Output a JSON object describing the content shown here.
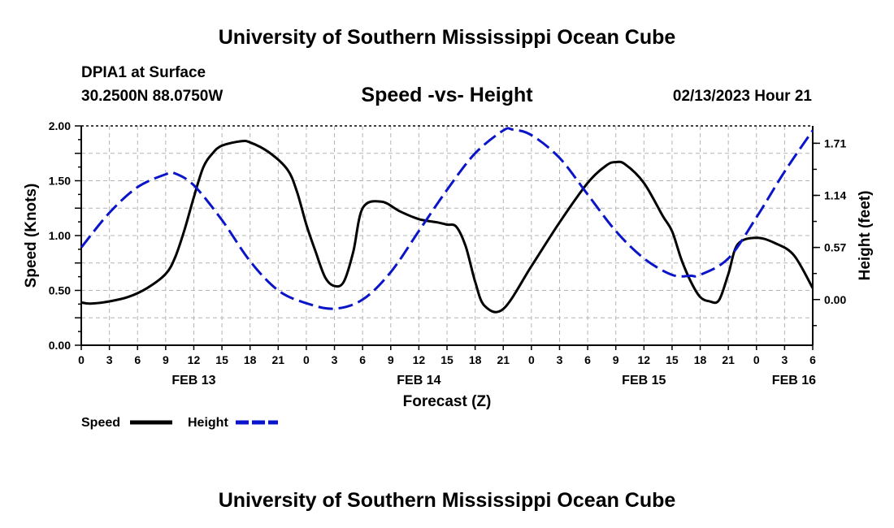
{
  "header": {
    "title": "University of Southern Mississippi Ocean Cube",
    "station": "DPIA1 at Surface",
    "coords": "30.2500N  88.0750W",
    "chart_title": "Speed -vs- Height",
    "datetime": "02/13/2023 Hour 21"
  },
  "footer": {
    "title": "University of Southern Mississippi Ocean Cube"
  },
  "legend": {
    "speed_label": "Speed",
    "height_label": "Height"
  },
  "colors": {
    "speed": "#000000",
    "height": "#0a14c8",
    "grid": "#b4b4b4"
  },
  "chart_data": {
    "type": "line",
    "title": "Speed -vs- Height",
    "xlabel": "Forecast (Z)",
    "ylabel": "Speed (Knots)",
    "y2label": "Height (feet)",
    "x_range_hours": [
      0,
      78
    ],
    "x_ticks": [
      {
        "h": 0,
        "label": "0"
      },
      {
        "h": 3,
        "label": "3"
      },
      {
        "h": 6,
        "label": "6"
      },
      {
        "h": 9,
        "label": "9"
      },
      {
        "h": 12,
        "label": "12"
      },
      {
        "h": 15,
        "label": "15"
      },
      {
        "h": 18,
        "label": "18"
      },
      {
        "h": 21,
        "label": "21"
      },
      {
        "h": 24,
        "label": "0"
      },
      {
        "h": 27,
        "label": "3"
      },
      {
        "h": 30,
        "label": "6"
      },
      {
        "h": 33,
        "label": "9"
      },
      {
        "h": 36,
        "label": "12"
      },
      {
        "h": 39,
        "label": "15"
      },
      {
        "h": 42,
        "label": "18"
      },
      {
        "h": 45,
        "label": "21"
      },
      {
        "h": 48,
        "label": "0"
      },
      {
        "h": 51,
        "label": "3"
      },
      {
        "h": 54,
        "label": "6"
      },
      {
        "h": 57,
        "label": "9"
      },
      {
        "h": 60,
        "label": "12"
      },
      {
        "h": 63,
        "label": "15"
      },
      {
        "h": 66,
        "label": "18"
      },
      {
        "h": 69,
        "label": "21"
      },
      {
        "h": 72,
        "label": "0"
      },
      {
        "h": 75,
        "label": "3"
      },
      {
        "h": 78,
        "label": "6"
      }
    ],
    "date_labels": [
      {
        "h": 12,
        "label": "FEB 13"
      },
      {
        "h": 36,
        "label": "FEB 14"
      },
      {
        "h": 60,
        "label": "FEB 15"
      },
      {
        "h": 76,
        "label": "FEB 16"
      }
    ],
    "y_left": {
      "range": [
        0,
        2.0
      ],
      "ticks": [
        0,
        0.5,
        1.0,
        1.5,
        2.0
      ],
      "tick_labels": [
        "0.00",
        "0.50",
        "1.00",
        "1.50",
        "2.00"
      ]
    },
    "y_right": {
      "range": [
        -0.5,
        1.9
      ],
      "ticks": [
        0.0,
        0.57,
        1.14,
        1.71
      ],
      "tick_labels": [
        "0.00",
        "0.57",
        "1.14",
        "1.71"
      ]
    },
    "series": [
      {
        "name": "Speed",
        "axis": "left",
        "style": "solid",
        "x": [
          0,
          1,
          3,
          5,
          7,
          9,
          10,
          11,
          12,
          13,
          14,
          15,
          17,
          18,
          20,
          22,
          23,
          24,
          25,
          26,
          27,
          28,
          29,
          30,
          32,
          34,
          36,
          38,
          39,
          40,
          41,
          42,
          43,
          45,
          48,
          51,
          54,
          56,
          57,
          58,
          60,
          62,
          63,
          64,
          65,
          66,
          67,
          68,
          69,
          70,
          72,
          74,
          76,
          78
        ],
        "values": [
          0.39,
          0.38,
          0.4,
          0.44,
          0.52,
          0.65,
          0.8,
          1.05,
          1.35,
          1.62,
          1.75,
          1.82,
          1.86,
          1.85,
          1.76,
          1.6,
          1.4,
          1.1,
          0.85,
          0.62,
          0.54,
          0.58,
          0.85,
          1.25,
          1.31,
          1.22,
          1.15,
          1.12,
          1.1,
          1.08,
          0.9,
          0.58,
          0.36,
          0.33,
          0.72,
          1.12,
          1.48,
          1.64,
          1.67,
          1.65,
          1.48,
          1.18,
          1.04,
          0.78,
          0.58,
          0.44,
          0.4,
          0.41,
          0.65,
          0.92,
          0.98,
          0.93,
          0.82,
          0.52
        ]
      },
      {
        "name": "Height",
        "axis": "right",
        "style": "dashed",
        "x": [
          0,
          3,
          6,
          9,
          10,
          12,
          15,
          18,
          21,
          24,
          27,
          30,
          33,
          36,
          39,
          42,
          45,
          46,
          48,
          51,
          54,
          57,
          60,
          63,
          65,
          66,
          69,
          72,
          75,
          78
        ],
        "values": [
          0.57,
          0.95,
          1.23,
          1.37,
          1.38,
          1.25,
          0.87,
          0.42,
          0.1,
          -0.04,
          -0.1,
          0.0,
          0.3,
          0.75,
          1.2,
          1.6,
          1.85,
          1.86,
          1.8,
          1.55,
          1.15,
          0.75,
          0.45,
          0.27,
          0.26,
          0.27,
          0.45,
          0.9,
          1.4,
          1.85
        ]
      }
    ]
  }
}
